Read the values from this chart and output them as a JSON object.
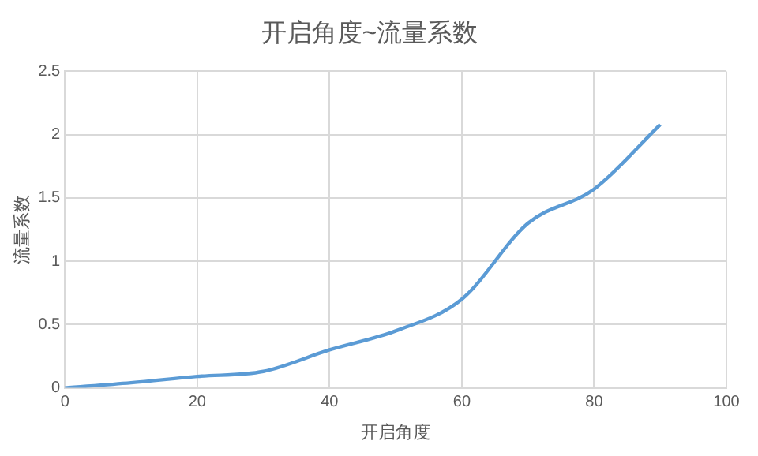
{
  "chart_data": {
    "type": "line",
    "title": "开启角度~流量系数",
    "xlabel": "开启角度",
    "ylabel": "流量系数",
    "x": [
      0,
      10,
      20,
      30,
      40,
      50,
      60,
      70,
      80,
      90
    ],
    "series": [
      {
        "color": "#5b9bd5",
        "values": [
          0,
          0.04,
          0.09,
          0.13,
          0.3,
          0.45,
          0.7,
          1.3,
          1.57,
          2.08
        ]
      }
    ],
    "xlim": [
      0,
      100
    ],
    "xticks": [
      0,
      20,
      40,
      60,
      80,
      100
    ],
    "ylim": [
      0,
      2.5
    ],
    "yticks": [
      0,
      0.5,
      1,
      1.5,
      2,
      2.5
    ],
    "grid": true,
    "legend": false,
    "marker": "none",
    "line_style": "solid"
  }
}
